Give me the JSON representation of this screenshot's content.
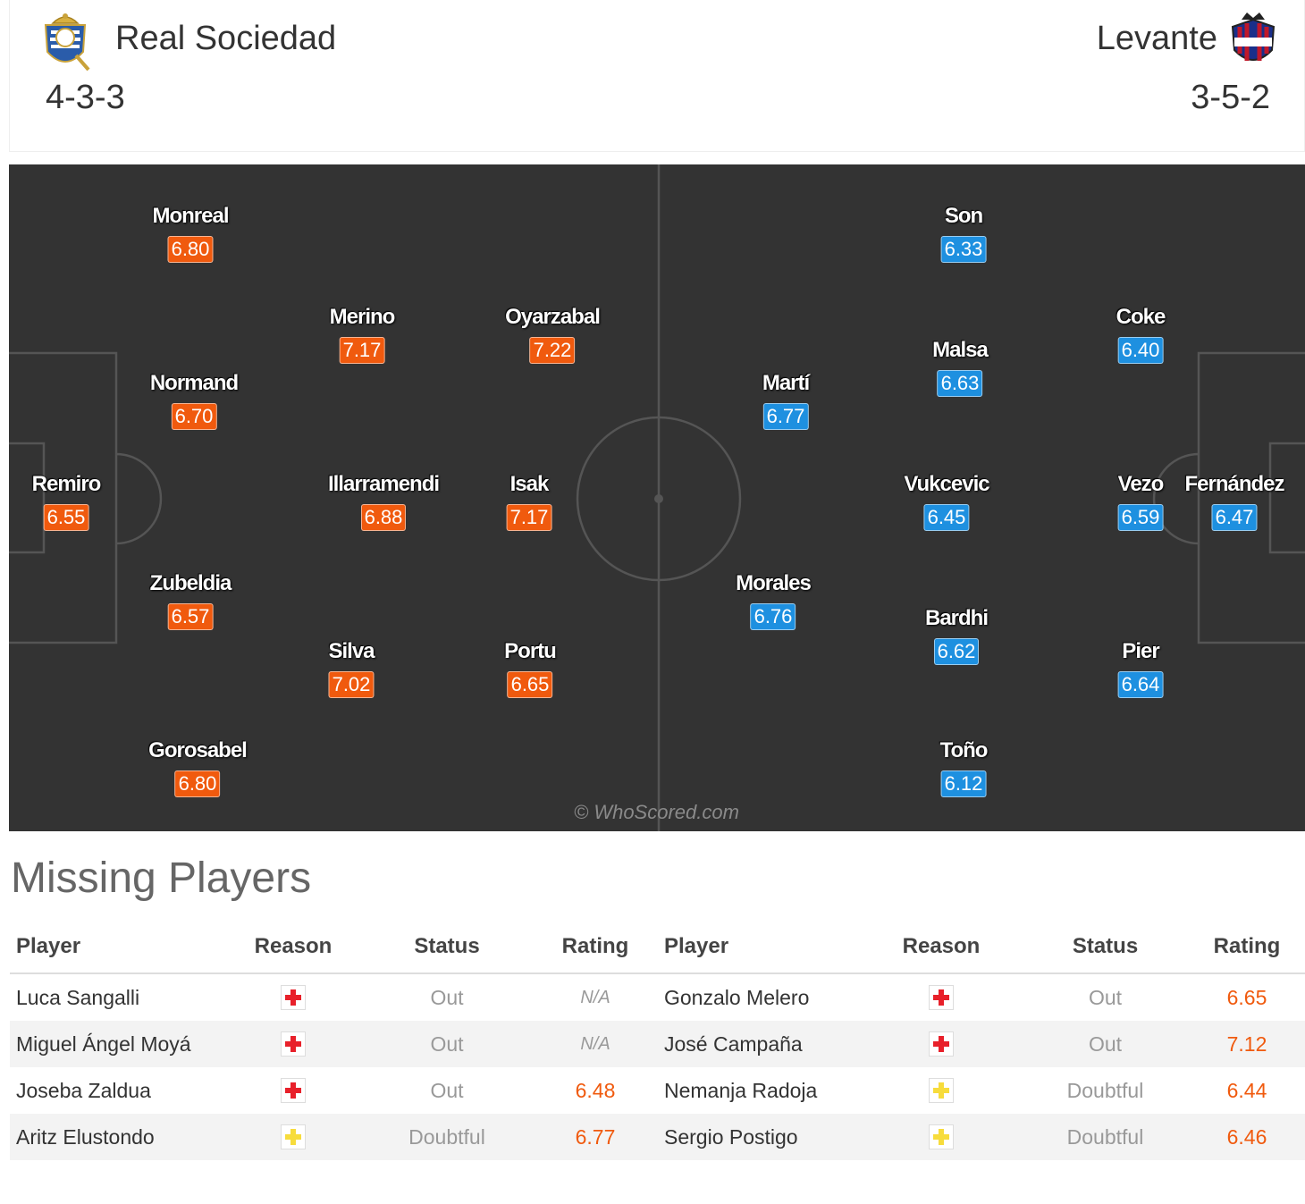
{
  "header": {
    "home": {
      "name": "Real Sociedad",
      "formation": "4-3-3",
      "crest": "real-sociedad-crest"
    },
    "away": {
      "name": "Levante",
      "formation": "3-5-2",
      "crest": "levante-crest"
    }
  },
  "pitch": {
    "watermark": "© WhoScored.com",
    "home_players": [
      {
        "name": "Monreal",
        "rating": "6.80"
      },
      {
        "name": "Merino",
        "rating": "7.17"
      },
      {
        "name": "Oyarzabal",
        "rating": "7.22"
      },
      {
        "name": "Normand",
        "rating": "6.70"
      },
      {
        "name": "Remiro",
        "rating": "6.55"
      },
      {
        "name": "Illarramendi",
        "rating": "6.88"
      },
      {
        "name": "Isak",
        "rating": "7.17"
      },
      {
        "name": "Zubeldia",
        "rating": "6.57"
      },
      {
        "name": "Silva",
        "rating": "7.02"
      },
      {
        "name": "Portu",
        "rating": "6.65"
      },
      {
        "name": "Gorosabel",
        "rating": "6.80"
      }
    ],
    "away_players": [
      {
        "name": "Son",
        "rating": "6.33"
      },
      {
        "name": "Coke",
        "rating": "6.40"
      },
      {
        "name": "Malsa",
        "rating": "6.63"
      },
      {
        "name": "Martí",
        "rating": "6.77"
      },
      {
        "name": "Vukcevic",
        "rating": "6.45"
      },
      {
        "name": "Vezo",
        "rating": "6.59"
      },
      {
        "name": "Fernández",
        "rating": "6.47"
      },
      {
        "name": "Morales",
        "rating": "6.76"
      },
      {
        "name": "Bardhi",
        "rating": "6.62"
      },
      {
        "name": "Pier",
        "rating": "6.64"
      },
      {
        "name": "Toño",
        "rating": "6.12"
      }
    ]
  },
  "missing": {
    "title": "Missing Players",
    "headers": {
      "player": "Player",
      "reason": "Reason",
      "status": "Status",
      "rating": "Rating"
    },
    "colors": {
      "injury": "#e8202a",
      "doubtful": "#f7dc3c"
    },
    "rows": [
      {
        "home": {
          "player": "Luca Sangalli",
          "reason": "injury-icon",
          "status": "Out",
          "rating": "N/A"
        },
        "away": {
          "player": "Gonzalo Melero",
          "reason": "injury-icon",
          "status": "Out",
          "rating": "6.65"
        }
      },
      {
        "home": {
          "player": "Miguel Ángel Moyá",
          "reason": "injury-icon",
          "status": "Out",
          "rating": "N/A"
        },
        "away": {
          "player": "José Campaña",
          "reason": "injury-icon",
          "status": "Out",
          "rating": "7.12"
        }
      },
      {
        "home": {
          "player": "Joseba Zaldua",
          "reason": "injury-icon",
          "status": "Out",
          "rating": "6.48"
        },
        "away": {
          "player": "Nemanja Radoja",
          "reason": "doubtful-icon",
          "status": "Doubtful",
          "rating": "6.44"
        }
      },
      {
        "home": {
          "player": "Aritz Elustondo",
          "reason": "doubtful-icon",
          "status": "Doubtful",
          "rating": "6.77"
        },
        "away": {
          "player": "Sergio Postigo",
          "reason": "doubtful-icon",
          "status": "Doubtful",
          "rating": "6.46"
        }
      }
    ]
  }
}
